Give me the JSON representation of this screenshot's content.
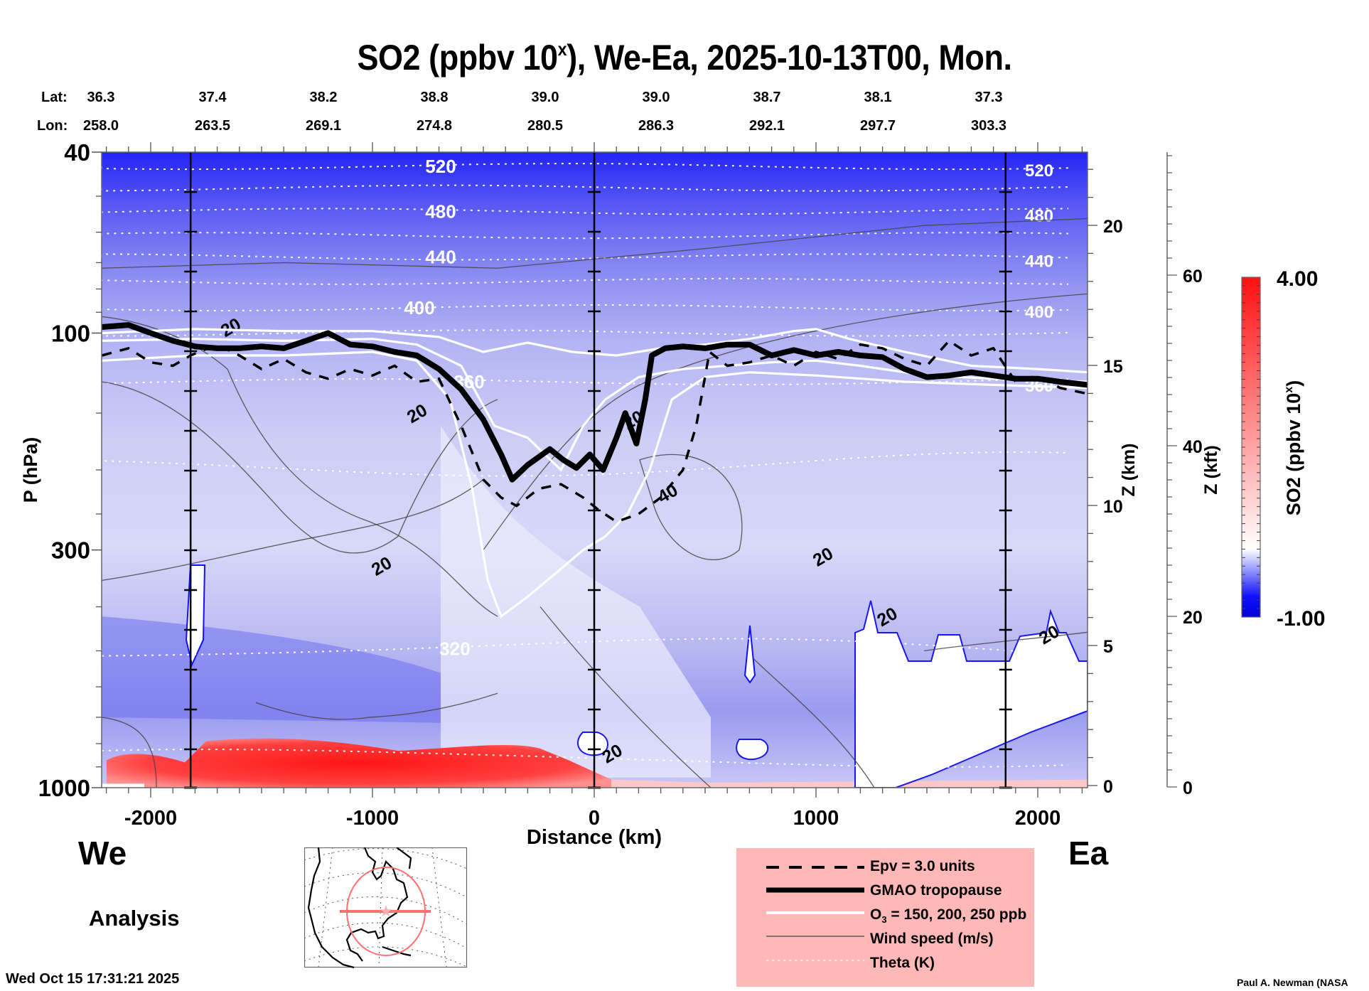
{
  "chart_data": {
    "type": "heatmap",
    "title_main": "SO2 (ppbv 10",
    "title_sup": "x",
    "title_rest": "), We-Ea, 2025-10-13T00, Mon.",
    "xlabel": "Distance (km)",
    "ylabel": "P (hPa)",
    "xlim": [
      -2220,
      2225
    ],
    "ylim_hpa": [
      1000,
      40
    ],
    "yscale": "log",
    "x_ticks": [
      -2000,
      -1000,
      0,
      1000,
      2000
    ],
    "x_tick_labels": [
      "-2000",
      "-1000",
      "0",
      "1000",
      "2000"
    ],
    "y_ticks_hpa": [
      40,
      100,
      300,
      1000
    ],
    "y_tick_labels": [
      "40",
      "100",
      "300",
      "1000"
    ],
    "z_km_axis": {
      "label": "Z (km)",
      "ticks": [
        0,
        5,
        10,
        15,
        20
      ],
      "tick_labels": [
        "0",
        "5",
        "10",
        "15",
        "20"
      ]
    },
    "z_kft_axis": {
      "label": "Z (kft)",
      "ticks": [
        0,
        20,
        40,
        60
      ],
      "tick_labels": [
        "0",
        "20",
        "40",
        "60"
      ]
    },
    "colorbar": {
      "label_main": "SO2 (ppbv 10",
      "label_sup": "x",
      "label_rest": ")",
      "min": -1.0,
      "max": 4.0,
      "min_label": "-1.00",
      "max_label": "4.00",
      "colors": [
        "#0000e0",
        "#ffffff",
        "#ff1010"
      ],
      "white_at": 0.0
    },
    "lat_label": "Lat:",
    "lon_label": "Lon:",
    "lat_values": [
      "36.3",
      "37.4",
      "38.2",
      "38.8",
      "39.0",
      "39.0",
      "38.7",
      "38.1",
      "37.3"
    ],
    "lon_values": [
      "258.0",
      "263.5",
      "269.1",
      "274.8",
      "280.5",
      "286.3",
      "292.1",
      "297.7",
      "303.3"
    ],
    "lat_lon_distance_km": [
      -2220,
      -1820,
      -1410,
      -1000,
      -590,
      -180,
      230,
      640,
      1050
    ],
    "marker_lines_km": [
      -1820,
      0,
      1855
    ],
    "theta_levels": [
      {
        "value": 520,
        "label": "520",
        "p_hpa": 43
      },
      {
        "value": 500,
        "label": "",
        "p_hpa": 48
      },
      {
        "value": 480,
        "label": "480",
        "p_hpa": 54
      },
      {
        "value": 460,
        "label": "",
        "p_hpa": 61
      },
      {
        "value": 440,
        "label": "440",
        "p_hpa": 68
      },
      {
        "value": 420,
        "label": "",
        "p_hpa": 77
      },
      {
        "value": 400,
        "label": "400",
        "p_hpa": 88
      },
      {
        "value": 380,
        "label": "",
        "p_hpa": 100
      },
      {
        "value": 360,
        "label": "360",
        "p_hpa": 128
      },
      {
        "value": 340,
        "label": "",
        "p_hpa": 195
      },
      {
        "value": 320,
        "label": "320",
        "p_hpa": 495
      },
      {
        "value": 300,
        "label": "",
        "p_hpa": 860
      }
    ],
    "tropopause_km_hpa": [
      [
        -2220,
        97
      ],
      [
        -2100,
        96
      ],
      [
        -2000,
        100
      ],
      [
        -1900,
        104
      ],
      [
        -1800,
        107
      ],
      [
        -1700,
        108
      ],
      [
        -1600,
        108
      ],
      [
        -1500,
        107
      ],
      [
        -1400,
        108
      ],
      [
        -1300,
        104
      ],
      [
        -1200,
        100
      ],
      [
        -1100,
        106
      ],
      [
        -1000,
        107
      ],
      [
        -900,
        110
      ],
      [
        -800,
        112
      ],
      [
        -700,
        120
      ],
      [
        -600,
        133
      ],
      [
        -500,
        155
      ],
      [
        -420,
        185
      ],
      [
        -370,
        210
      ],
      [
        -300,
        195
      ],
      [
        -200,
        180
      ],
      [
        -140,
        190
      ],
      [
        -80,
        198
      ],
      [
        -20,
        185
      ],
      [
        40,
        200
      ],
      [
        100,
        170
      ],
      [
        140,
        150
      ],
      [
        190,
        175
      ],
      [
        230,
        140
      ],
      [
        260,
        112
      ],
      [
        320,
        108
      ],
      [
        400,
        107
      ],
      [
        500,
        108
      ],
      [
        600,
        106
      ],
      [
        700,
        106
      ],
      [
        800,
        112
      ],
      [
        900,
        109
      ],
      [
        1000,
        112
      ],
      [
        1100,
        110
      ],
      [
        1200,
        112
      ],
      [
        1300,
        113
      ],
      [
        1400,
        120
      ],
      [
        1500,
        125
      ],
      [
        1600,
        124
      ],
      [
        1700,
        122
      ],
      [
        1800,
        124
      ],
      [
        1900,
        126
      ],
      [
        2000,
        126
      ],
      [
        2100,
        128
      ],
      [
        2225,
        130
      ]
    ],
    "epv_3pvu_km_hpa": [
      [
        -2220,
        112
      ],
      [
        -2100,
        108
      ],
      [
        -2000,
        116
      ],
      [
        -1900,
        118
      ],
      [
        -1820,
        112
      ],
      [
        -1700,
        106
      ],
      [
        -1600,
        112
      ],
      [
        -1500,
        120
      ],
      [
        -1400,
        114
      ],
      [
        -1300,
        122
      ],
      [
        -1200,
        126
      ],
      [
        -1100,
        120
      ],
      [
        -1000,
        124
      ],
      [
        -900,
        118
      ],
      [
        -800,
        128
      ],
      [
        -700,
        126
      ],
      [
        -600,
        160
      ],
      [
        -500,
        210
      ],
      [
        -420,
        230
      ],
      [
        -350,
        240
      ],
      [
        -250,
        220
      ],
      [
        -150,
        215
      ],
      [
        -50,
        230
      ],
      [
        20,
        245
      ],
      [
        100,
        260
      ],
      [
        200,
        250
      ],
      [
        300,
        230
      ],
      [
        400,
        200
      ],
      [
        460,
        160
      ],
      [
        520,
        110
      ],
      [
        600,
        118
      ],
      [
        700,
        116
      ],
      [
        800,
        112
      ],
      [
        900,
        118
      ],
      [
        1000,
        110
      ],
      [
        1100,
        114
      ],
      [
        1200,
        106
      ],
      [
        1300,
        108
      ],
      [
        1400,
        114
      ],
      [
        1500,
        118
      ],
      [
        1600,
        104
      ],
      [
        1700,
        112
      ],
      [
        1800,
        108
      ],
      [
        1900,
        128
      ],
      [
        2000,
        124
      ],
      [
        2100,
        132
      ],
      [
        2225,
        136
      ]
    ],
    "o3_contours_ppb": [
      {
        "level": 150,
        "points_km_hpa": [
          [
            -2220,
            100
          ],
          [
            -1800,
            98
          ],
          [
            -1400,
            99
          ],
          [
            -1000,
            99
          ],
          [
            -700,
            102
          ],
          [
            -500,
            110
          ],
          [
            -300,
            105
          ],
          [
            -100,
            110
          ],
          [
            100,
            112
          ],
          [
            300,
            108
          ],
          [
            500,
            106
          ],
          [
            700,
            103
          ],
          [
            900,
            99
          ],
          [
            1000,
            98
          ],
          [
            1150,
            103
          ],
          [
            1400,
            110
          ],
          [
            1700,
            118
          ],
          [
            2000,
            120
          ],
          [
            2225,
            122
          ]
        ]
      },
      {
        "level": 200,
        "points_km_hpa": [
          [
            -2220,
            104
          ],
          [
            -1800,
            103
          ],
          [
            -1400,
            104
          ],
          [
            -1000,
            103
          ],
          [
            -800,
            106
          ],
          [
            -600,
            118
          ],
          [
            -450,
            160
          ],
          [
            -300,
            170
          ],
          [
            -150,
            200
          ],
          [
            -50,
            160
          ],
          [
            50,
            140
          ],
          [
            200,
            125
          ],
          [
            400,
            120
          ],
          [
            600,
            118
          ],
          [
            800,
            116
          ],
          [
            1000,
            115
          ],
          [
            1200,
            118
          ],
          [
            1500,
            124
          ],
          [
            1800,
            126
          ],
          [
            2225,
            128
          ]
        ]
      },
      {
        "level": 250,
        "points_km_hpa": [
          [
            -2220,
            115
          ],
          [
            -1800,
            112
          ],
          [
            -1400,
            112
          ],
          [
            -1000,
            110
          ],
          [
            -800,
            115
          ],
          [
            -650,
            140
          ],
          [
            -550,
            220
          ],
          [
            -480,
            350
          ],
          [
            -420,
            420
          ],
          [
            -300,
            380
          ],
          [
            -150,
            330
          ],
          [
            -50,
            300
          ],
          [
            50,
            280
          ],
          [
            150,
            250
          ],
          [
            250,
            200
          ],
          [
            350,
            140
          ],
          [
            500,
            125
          ],
          [
            700,
            122
          ],
          [
            1000,
            124
          ],
          [
            1400,
            128
          ],
          [
            1800,
            130
          ],
          [
            2225,
            132
          ]
        ]
      }
    ],
    "wind_speed_contour_labels": [
      {
        "text": "20",
        "km": -1640,
        "hpa": 97
      },
      {
        "text": "20",
        "km": -800,
        "hpa": 150
      },
      {
        "text": "20",
        "km": -960,
        "hpa": 325
      },
      {
        "text": "20",
        "km": 80,
        "hpa": 840
      },
      {
        "text": "20",
        "km": 175,
        "hpa": 155
      },
      {
        "text": "40",
        "km": 330,
        "hpa": 225
      },
      {
        "text": "20",
        "km": 1030,
        "hpa": 310
      },
      {
        "text": "20",
        "km": 1320,
        "hpa": 420
      },
      {
        "text": "20",
        "km": 2050,
        "hpa": 460
      }
    ],
    "legend": {
      "items": [
        {
          "label": "Epv = 3.0 units",
          "style": "dashed-black"
        },
        {
          "label": "GMAO tropopause",
          "style": "thick-black"
        },
        {
          "label_main": "O",
          "label_sub": "3",
          "label_rest": " = 150, 200, 250 ppb",
          "style": "white"
        },
        {
          "label": "Wind speed (m/s)",
          "style": "thin-gray"
        },
        {
          "label": "Theta (K)",
          "style": "dotted-white"
        }
      ]
    }
  },
  "labels": {
    "west": "We",
    "east": "Ea",
    "analysis": "Analysis",
    "timestamp": "Wed Oct 15 17:31:21 2025",
    "credit": "Paul A. Newman (NASA"
  },
  "inset_map": {
    "description": "North America locator map",
    "track_color": "#ff7070"
  }
}
